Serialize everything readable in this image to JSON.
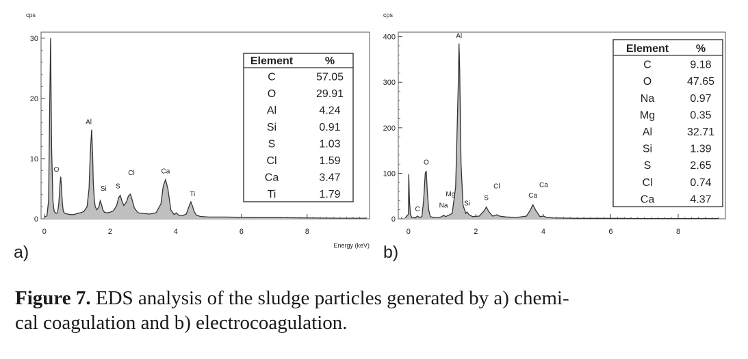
{
  "caption": {
    "label": "Figure 7.",
    "text": "EDS analysis of the sludge particles generated by a) chemi-",
    "text2": "cal coagulation and b) electrocoagulation."
  },
  "chart_data": [
    {
      "type": "line",
      "panel_label": "a)",
      "ylabel": "cps",
      "xlabel": "Energy (keV)",
      "xlim": [
        -0.1,
        9.9
      ],
      "ylim": [
        0,
        31
      ],
      "x_ticks": [
        0,
        2,
        4,
        6,
        8
      ],
      "y_ticks": [
        0,
        10,
        20,
        30
      ],
      "series": [
        {
          "x": [
            0.0,
            0.08,
            0.13,
            0.16,
            0.19,
            0.22,
            0.26,
            0.3,
            0.36,
            0.4,
            0.44,
            0.48,
            0.5,
            0.52,
            0.55,
            0.58,
            0.62,
            0.7,
            0.8,
            0.9,
            1.0,
            1.1,
            1.2,
            1.3,
            1.36,
            1.4,
            1.44,
            1.47,
            1.49,
            1.52,
            1.55,
            1.6,
            1.66,
            1.7,
            1.74,
            1.78,
            1.83,
            1.9,
            2.0,
            2.1,
            2.2,
            2.26,
            2.31,
            2.36,
            2.42,
            2.5,
            2.56,
            2.62,
            2.67,
            2.74,
            2.85,
            3.0,
            3.2,
            3.4,
            3.55,
            3.62,
            3.69,
            3.76,
            3.85,
            3.95,
            4.02,
            4.09,
            4.2,
            4.32,
            4.4,
            4.46,
            4.51,
            4.56,
            4.63,
            4.75,
            5.0,
            5.5,
            6.0,
            6.5,
            7.0,
            8.0,
            9.0,
            9.8
          ],
          "y": [
            0.3,
            0.5,
            3,
            17.5,
            30,
            12,
            3,
            1.2,
            0.9,
            1.0,
            2.5,
            6.0,
            7.0,
            5.2,
            2.5,
            1.2,
            0.9,
            0.8,
            0.7,
            0.7,
            0.9,
            1.0,
            1.2,
            2.0,
            5.0,
            11.0,
            14.8,
            10.5,
            6.0,
            3.2,
            2.0,
            1.5,
            2.0,
            3.0,
            2.4,
            1.5,
            1.1,
            1.0,
            1.1,
            1.3,
            2.2,
            3.5,
            3.9,
            3.0,
            2.2,
            2.8,
            3.8,
            4.1,
            3.2,
            1.8,
            1.0,
            0.9,
            0.8,
            1.0,
            2.5,
            5.5,
            6.5,
            5.0,
            1.5,
            0.7,
            1.0,
            0.6,
            0.5,
            0.8,
            2.0,
            2.8,
            2.1,
            1.2,
            0.6,
            0.4,
            0.3,
            0.3,
            0.25,
            0.2,
            0.2,
            0.15,
            0.1,
            0.1
          ]
        }
      ],
      "peak_labels": [
        {
          "text": "O",
          "x": 0.37,
          "y": 7.5
        },
        {
          "text": "Al",
          "x": 1.35,
          "y": 15.4
        },
        {
          "text": "Si",
          "x": 1.8,
          "y": 4.3
        },
        {
          "text": "S",
          "x": 2.24,
          "y": 4.7
        },
        {
          "text": "Cl",
          "x": 2.65,
          "y": 6.9
        },
        {
          "text": "Ca",
          "x": 3.69,
          "y": 7.2
        },
        {
          "text": "Ti",
          "x": 4.51,
          "y": 3.4
        }
      ],
      "table": {
        "headers": [
          "Element",
          "%"
        ],
        "rows": [
          [
            "C",
            "57.05"
          ],
          [
            "O",
            "29.91"
          ],
          [
            "Al",
            "4.24"
          ],
          [
            "Si",
            "0.91"
          ],
          [
            "S",
            "1.03"
          ],
          [
            "Cl",
            "1.59"
          ],
          [
            "Ca",
            "3.47"
          ],
          [
            "Ti",
            "1.79"
          ]
        ]
      }
    },
    {
      "type": "line",
      "panel_label": "b)",
      "ylabel": "cps",
      "xlabel": "",
      "xlim": [
        -0.3,
        9.4
      ],
      "ylim": [
        0,
        410
      ],
      "x_ticks": [
        0,
        2,
        4,
        6,
        8
      ],
      "y_ticks": [
        0,
        100,
        200,
        300,
        400
      ],
      "series": [
        {
          "x": [
            -0.1,
            0.0,
            0.01,
            0.03,
            0.06,
            0.1,
            0.2,
            0.27,
            0.32,
            0.4,
            0.45,
            0.5,
            0.53,
            0.56,
            0.6,
            0.65,
            0.75,
            0.9,
            1.0,
            1.04,
            1.1,
            1.2,
            1.25,
            1.3,
            1.4,
            1.45,
            1.48,
            1.5,
            1.52,
            1.56,
            1.62,
            1.7,
            1.74,
            1.8,
            1.9,
            2.1,
            2.25,
            2.31,
            2.38,
            2.5,
            2.6,
            2.62,
            2.7,
            2.9,
            3.2,
            3.5,
            3.62,
            3.69,
            3.78,
            3.9,
            4.01,
            4.1,
            4.3,
            5.0,
            6.0,
            7.0,
            8.0,
            9.2
          ],
          "y": [
            2,
            10,
            98,
            40,
            10,
            3,
            2,
            6,
            3,
            5,
            40,
            100,
            105,
            60,
            20,
            5,
            3,
            3,
            5,
            8,
            5,
            8,
            10,
            12,
            70,
            210,
            300,
            385,
            330,
            120,
            30,
            12,
            15,
            9,
            5,
            6,
            18,
            26,
            16,
            6,
            8,
            9,
            6,
            4,
            3,
            6,
            20,
            31,
            18,
            5,
            6,
            3,
            2,
            1,
            1,
            0.5,
            0.5,
            0.5
          ]
        }
      ],
      "peak_labels": [
        {
          "text": "C",
          "x": 0.27,
          "y": 12
        },
        {
          "text": "O",
          "x": 0.53,
          "y": 115
        },
        {
          "text": "Na",
          "x": 1.04,
          "y": 20
        },
        {
          "text": "Mg",
          "x": 1.25,
          "y": 45
        },
        {
          "text": "Al",
          "x": 1.5,
          "y": 393
        },
        {
          "text": "Si",
          "x": 1.74,
          "y": 25
        },
        {
          "text": "S",
          "x": 2.31,
          "y": 37
        },
        {
          "text": "Cl",
          "x": 2.62,
          "y": 62
        },
        {
          "text": "Ca",
          "x": 3.69,
          "y": 42
        },
        {
          "text": "Ca",
          "x": 4.01,
          "y": 65
        }
      ],
      "table": {
        "headers": [
          "Element",
          "%"
        ],
        "rows": [
          [
            "C",
            "9.18"
          ],
          [
            "O",
            "47.65"
          ],
          [
            "Na",
            "0.97"
          ],
          [
            "Mg",
            "0.35"
          ],
          [
            "Al",
            "32.71"
          ],
          [
            "Si",
            "1.39"
          ],
          [
            "S",
            "2.65"
          ],
          [
            "Cl",
            "0.74"
          ],
          [
            "Ca",
            "4.37"
          ]
        ]
      }
    }
  ]
}
